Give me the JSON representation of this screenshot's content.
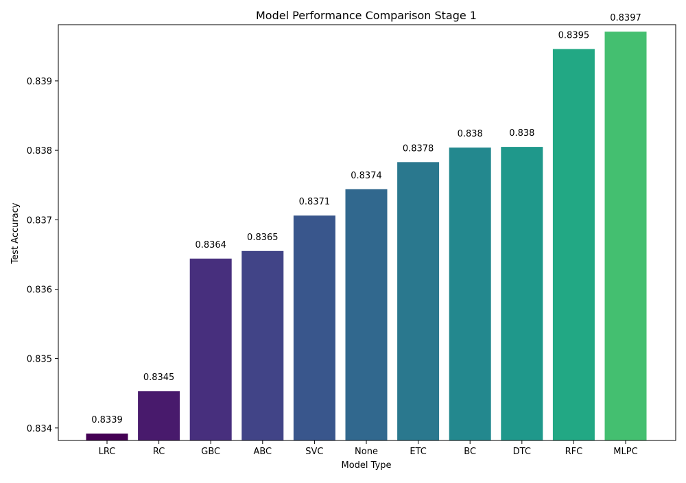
{
  "chart_data": {
    "type": "bar",
    "title": "Model Performance Comparison Stage 1",
    "xlabel": "Model Type",
    "ylabel": "Test Accuracy",
    "categories": [
      "LRC",
      "RC",
      "GBC",
      "ABC",
      "SVC",
      "None",
      "ETC",
      "BC",
      "DTC",
      "RFC",
      "MLPC"
    ],
    "values": [
      0.83392,
      0.83453,
      0.83644,
      0.83655,
      0.83706,
      0.83744,
      0.83783,
      0.83804,
      0.83805,
      0.83946,
      0.83971
    ],
    "data_labels": [
      "0.8339",
      "0.8345",
      "0.8364",
      "0.8365",
      "0.8371",
      "0.8374",
      "0.8378",
      "0.838",
      "0.838",
      "0.8395",
      "0.8397"
    ],
    "colors": [
      "#440154",
      "#481a6c",
      "#472f7d",
      "#414487",
      "#39568c",
      "#31688e",
      "#2a788e",
      "#23888e",
      "#1f988b",
      "#22a884",
      "#44bf70"
    ],
    "ylim": [
      0.83382,
      0.83981
    ],
    "yticks": [
      0.834,
      0.835,
      0.836,
      0.837,
      0.838,
      0.839
    ],
    "ytick_labels": [
      "0.834",
      "0.835",
      "0.836",
      "0.837",
      "0.838",
      "0.839"
    ],
    "grid": false,
    "legend": "none"
  }
}
